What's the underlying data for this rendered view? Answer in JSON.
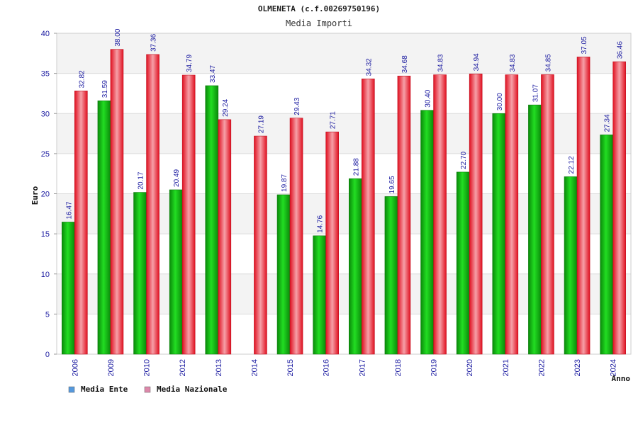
{
  "chart_data": {
    "type": "bar",
    "title": "OLMENETA (c.f.00269750196)",
    "subtitle": "Media Importi",
    "xlabel": "Anno",
    "ylabel": "Euro",
    "ylim": [
      0,
      40
    ],
    "yticks": [
      0,
      5,
      10,
      15,
      20,
      25,
      30,
      35,
      40
    ],
    "grid": true,
    "legend_position": "bottom-left",
    "categories": [
      "2006",
      "2009",
      "2010",
      "2012",
      "2013",
      "2014",
      "2015",
      "2016",
      "2017",
      "2018",
      "2019",
      "2020",
      "2021",
      "2022",
      "2023",
      "2024"
    ],
    "series": [
      {
        "name": "Media Ente",
        "color": "#14b814",
        "legend_color": "#5599dd",
        "values": [
          16.47,
          31.59,
          20.17,
          20.49,
          33.47,
          null,
          19.87,
          14.76,
          21.88,
          19.65,
          30.4,
          22.7,
          30.0,
          31.07,
          22.12,
          27.34
        ],
        "labels": [
          "16.47",
          "31.59",
          "20.17",
          "20.49",
          "33.47",
          "",
          "19.87",
          "14.76",
          "21.88",
          "19.65",
          "30.40",
          "22.70",
          "30.00",
          "31.07",
          "22.12",
          "27.34"
        ]
      },
      {
        "name": "Media Nazionale",
        "color": "#e8222e",
        "legend_color": "#dd88aa",
        "values": [
          32.82,
          38.0,
          37.36,
          34.79,
          29.24,
          27.19,
          29.43,
          27.71,
          34.32,
          34.68,
          34.83,
          34.94,
          34.83,
          34.85,
          37.05,
          36.46
        ],
        "labels": [
          "32.82",
          "38.00",
          "37.36",
          "34.79",
          "29.24",
          "27.19",
          "29.43",
          "27.71",
          "34.32",
          "34.68",
          "34.83",
          "34.94",
          "34.83",
          "34.85",
          "37.05",
          "36.46"
        ]
      }
    ]
  }
}
